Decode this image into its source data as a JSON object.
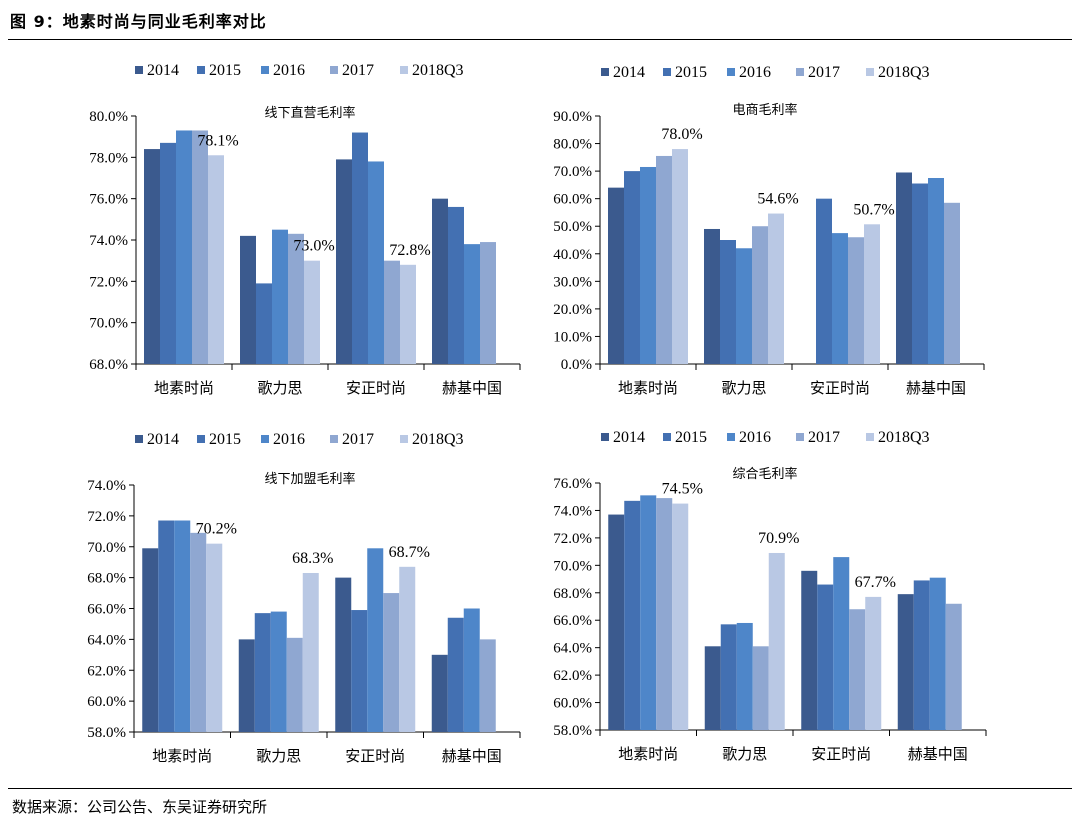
{
  "figure": {
    "title": "图 9：地素时尚与同业毛利率对比",
    "source": "数据来源：公司公告、东吴证券研究所"
  },
  "colors": {
    "2014": "#3b5a8e",
    "2015": "#4370b2",
    "2016": "#4e86c9",
    "2017": "#8fa7d1",
    "2018Q3": "#b9c8e4"
  },
  "chart_data": [
    {
      "type": "bar",
      "title": "线下直营毛利率",
      "categories": [
        "地素时尚",
        "歌力思",
        "安正时尚",
        "赫基中国"
      ],
      "series": [
        {
          "name": "2014",
          "values": [
            78.4,
            74.2,
            77.9,
            76.0
          ]
        },
        {
          "name": "2015",
          "values": [
            78.7,
            71.9,
            79.2,
            75.6
          ]
        },
        {
          "name": "2016",
          "values": [
            79.3,
            74.5,
            77.8,
            73.8
          ]
        },
        {
          "name": "2017",
          "values": [
            79.3,
            74.3,
            73.0,
            73.9
          ]
        },
        {
          "name": "2018Q3",
          "values": [
            78.1,
            73.0,
            72.8,
            null
          ]
        }
      ],
      "ylim": [
        68,
        80
      ],
      "yticks": [
        68,
        70,
        72,
        74,
        76,
        78,
        80
      ],
      "tick_format": "%.1f",
      "data_labels": [
        {
          "category": 0,
          "series": 4,
          "text": "78.1%"
        },
        {
          "category": 1,
          "series": 4,
          "text": "73.0%"
        },
        {
          "category": 2,
          "series": 4,
          "text": "72.8%"
        }
      ],
      "legend": "top",
      "grid": false
    },
    {
      "type": "bar",
      "title": "电商毛利率",
      "categories": [
        "地素时尚",
        "歌力思",
        "安正时尚",
        "赫基中国"
      ],
      "series": [
        {
          "name": "2014",
          "values": [
            64.0,
            49.0,
            null,
            69.5
          ]
        },
        {
          "name": "2015",
          "values": [
            70.0,
            45.0,
            60.0,
            65.5
          ]
        },
        {
          "name": "2016",
          "values": [
            71.5,
            42.0,
            47.5,
            67.5
          ]
        },
        {
          "name": "2017",
          "values": [
            75.5,
            50.0,
            46.0,
            58.5
          ]
        },
        {
          "name": "2018Q3",
          "values": [
            78.0,
            54.6,
            50.7,
            null
          ]
        }
      ],
      "ylim": [
        0,
        90
      ],
      "yticks": [
        0,
        10,
        20,
        30,
        40,
        50,
        60,
        70,
        80,
        90
      ],
      "tick_format": "%.1f",
      "data_labels": [
        {
          "category": 0,
          "series": 4,
          "text": "78.0%"
        },
        {
          "category": 1,
          "series": 4,
          "text": "54.6%"
        },
        {
          "category": 2,
          "series": 4,
          "text": "50.7%"
        }
      ],
      "legend": "top",
      "grid": false
    },
    {
      "type": "bar",
      "title": "线下加盟毛利率",
      "categories": [
        "地素时尚",
        "歌力思",
        "安正时尚",
        "赫基中国"
      ],
      "series": [
        {
          "name": "2014",
          "values": [
            69.9,
            64.0,
            68.0,
            63.0
          ]
        },
        {
          "name": "2015",
          "values": [
            71.7,
            65.7,
            65.9,
            65.4
          ]
        },
        {
          "name": "2016",
          "values": [
            71.7,
            65.8,
            69.9,
            66.0
          ]
        },
        {
          "name": "2017",
          "values": [
            70.9,
            64.1,
            67.0,
            64.0
          ]
        },
        {
          "name": "2018Q3",
          "values": [
            70.2,
            68.3,
            68.7,
            null
          ]
        }
      ],
      "ylim": [
        58,
        74
      ],
      "yticks": [
        58,
        60,
        62,
        64,
        66,
        68,
        70,
        72,
        74
      ],
      "tick_format": "%.1f",
      "data_labels": [
        {
          "category": 0,
          "series": 4,
          "text": "70.2%"
        },
        {
          "category": 1,
          "series": 4,
          "text": "68.3%"
        },
        {
          "category": 2,
          "series": 4,
          "text": "68.7%"
        }
      ],
      "legend": "top",
      "grid": false
    },
    {
      "type": "bar",
      "title": "综合毛利率",
      "categories": [
        "地素时尚",
        "歌力思",
        "安正时尚",
        "赫基中国"
      ],
      "series": [
        {
          "name": "2014",
          "values": [
            73.7,
            64.1,
            69.6,
            67.9
          ]
        },
        {
          "name": "2015",
          "values": [
            74.7,
            65.7,
            68.6,
            68.9
          ]
        },
        {
          "name": "2016",
          "values": [
            75.1,
            65.8,
            70.6,
            69.1
          ]
        },
        {
          "name": "2017",
          "values": [
            74.9,
            64.1,
            66.8,
            67.2
          ]
        },
        {
          "name": "2018Q3",
          "values": [
            74.5,
            70.9,
            67.7,
            null
          ]
        }
      ],
      "ylim": [
        58,
        76
      ],
      "yticks": [
        58,
        60,
        62,
        64,
        66,
        68,
        70,
        72,
        74,
        76
      ],
      "tick_format": "%.1f",
      "data_labels": [
        {
          "category": 0,
          "series": 4,
          "text": "74.5%"
        },
        {
          "category": 1,
          "series": 4,
          "text": "70.9%"
        },
        {
          "category": 2,
          "series": 4,
          "text": "67.7%"
        }
      ],
      "legend": "top",
      "grid": false
    }
  ]
}
